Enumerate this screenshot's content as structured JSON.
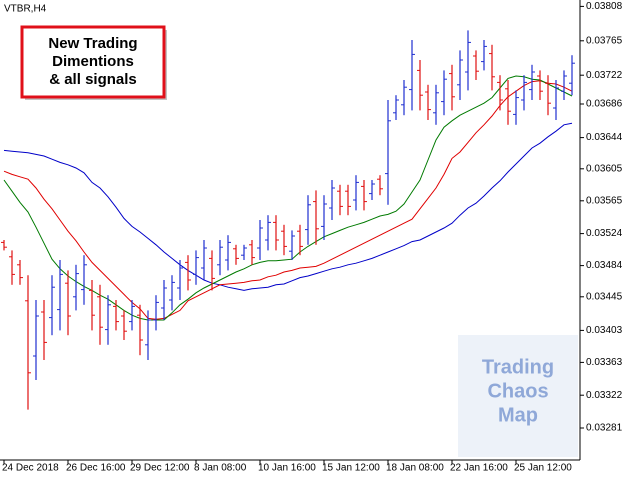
{
  "chart_data": {
    "type": "ohlc",
    "title": "VTBR,H4",
    "annotation": [
      "New Trading",
      "Dimentions",
      "& all signals"
    ],
    "watermark": [
      "Trading",
      "Chaos",
      "Map"
    ],
    "categories": [
      "24 Dec 2018",
      null,
      null,
      null,
      null,
      null,
      null,
      null,
      "26 Dec 16:00",
      null,
      null,
      null,
      null,
      null,
      null,
      null,
      "29 Dec 12:00",
      null,
      null,
      null,
      null,
      null,
      null,
      null,
      "8 Jan 08:00",
      null,
      null,
      null,
      null,
      null,
      null,
      null,
      "10 Jan 16:00",
      null,
      null,
      null,
      null,
      null,
      null,
      null,
      "15 Jan 12:00",
      null,
      null,
      null,
      null,
      null,
      null,
      null,
      "18 Jan 08:00",
      null,
      null,
      null,
      null,
      null,
      null,
      null,
      "22 Jan 16:00",
      null,
      null,
      null,
      null,
      null,
      null,
      null,
      "25 Jan 12:00",
      null,
      null,
      null,
      null,
      null,
      null,
      null
    ],
    "ylim": [
      0.03241,
      0.03816
    ],
    "yticks": [
      0.03808,
      0.03765,
      0.03722,
      0.03686,
      0.03644,
      0.03605,
      0.03565,
      0.03524,
      0.03484,
      0.03445,
      0.03403,
      0.03363,
      0.03322,
      0.03281
    ],
    "up_color": "#1f2fd0",
    "down_color": "#e01010",
    "open": [
      0.03513,
      0.03495,
      0.03485,
      0.0344,
      0.03371,
      0.03426,
      0.03419,
      0.03429,
      0.03462,
      0.03445,
      0.03454,
      0.03453,
      0.03445,
      0.03404,
      0.03433,
      0.03421,
      0.03414,
      0.03422,
      0.03385,
      0.03416,
      0.03431,
      0.03441,
      0.03456,
      0.03488,
      0.03473,
      0.03481,
      0.03493,
      0.03485,
      0.03491,
      0.03505,
      0.03497,
      0.0351,
      0.03506,
      0.03516,
      0.03538,
      0.03527,
      0.03502,
      0.03527,
      0.03529,
      0.03564,
      0.03533,
      0.03556,
      0.03577,
      0.03577,
      0.03566,
      0.03583,
      0.03574,
      0.03592,
      0.03599,
      0.03675,
      0.03685,
      0.03704,
      0.03728,
      0.03701,
      0.03675,
      0.03689,
      0.03724,
      0.0371,
      0.03726,
      0.03746,
      0.03739,
      0.03749,
      0.03713,
      0.03705,
      0.03673,
      0.03691,
      0.03704,
      0.03721,
      0.03712,
      0.03681,
      0.03702,
      0.03712
    ],
    "high": [
      0.03516,
      0.03503,
      0.03491,
      0.03472,
      0.03441,
      0.03441,
      0.03472,
      0.03491,
      0.03478,
      0.03485,
      0.03497,
      0.03466,
      0.0346,
      0.03447,
      0.03441,
      0.03428,
      0.03441,
      0.03435,
      0.03428,
      0.03447,
      0.03466,
      0.03472,
      0.03491,
      0.03497,
      0.03503,
      0.03516,
      0.03503,
      0.03516,
      0.03522,
      0.0351,
      0.0351,
      0.03516,
      0.03541,
      0.03547,
      0.03547,
      0.03535,
      0.03528,
      0.03535,
      0.03572,
      0.03578,
      0.03572,
      0.03591,
      0.03585,
      0.03585,
      0.03597,
      0.03591,
      0.03591,
      0.03597,
      0.03691,
      0.03697,
      0.03716,
      0.03766,
      0.03741,
      0.0371,
      0.0371,
      0.03728,
      0.03735,
      0.03753,
      0.03778,
      0.03753,
      0.03766,
      0.0376,
      0.03722,
      0.03716,
      0.03703,
      0.03722,
      0.03735,
      0.03728,
      0.03722,
      0.03716,
      0.03728,
      0.03747
    ],
    "low": [
      0.03503,
      0.0346,
      0.0346,
      0.03304,
      0.03341,
      0.03366,
      0.03397,
      0.03403,
      0.03397,
      0.03428,
      0.03435,
      0.03403,
      0.03385,
      0.03385,
      0.03403,
      0.03391,
      0.03403,
      0.03372,
      0.03366,
      0.03403,
      0.03416,
      0.03428,
      0.03441,
      0.03453,
      0.0346,
      0.03466,
      0.03453,
      0.03472,
      0.03478,
      0.03485,
      0.03491,
      0.03485,
      0.03491,
      0.03503,
      0.03503,
      0.03497,
      0.03491,
      0.03497,
      0.0351,
      0.0351,
      0.03516,
      0.03541,
      0.03547,
      0.03547,
      0.03553,
      0.03553,
      0.03566,
      0.03572,
      0.0356,
      0.03666,
      0.03672,
      0.03678,
      0.03678,
      0.03666,
      0.0366,
      0.03672,
      0.03678,
      0.03691,
      0.03703,
      0.03716,
      0.03728,
      0.03703,
      0.03678,
      0.0366,
      0.0366,
      0.03678,
      0.03691,
      0.03691,
      0.03672,
      0.03666,
      0.03691,
      0.03697
    ],
    "close": [
      0.03507,
      0.03473,
      0.03469,
      0.0335,
      0.03421,
      0.03388,
      0.03457,
      0.03473,
      0.03421,
      0.03474,
      0.03485,
      0.03422,
      0.03407,
      0.03435,
      0.03414,
      0.03402,
      0.03433,
      0.03391,
      0.03416,
      0.03438,
      0.03456,
      0.03463,
      0.03481,
      0.03466,
      0.03494,
      0.03506,
      0.03468,
      0.03507,
      0.03513,
      0.03493,
      0.03506,
      0.03494,
      0.03531,
      0.03538,
      0.03516,
      0.03508,
      0.03521,
      0.03508,
      0.0356,
      0.0353,
      0.03561,
      0.03581,
      0.03558,
      0.03558,
      0.03588,
      0.03564,
      0.03586,
      0.0358,
      0.03665,
      0.03691,
      0.03707,
      0.03748,
      0.03697,
      0.03679,
      0.037,
      0.03717,
      0.03695,
      0.03741,
      0.03763,
      0.03727,
      0.03758,
      0.0372,
      0.03691,
      0.03677,
      0.03694,
      0.03713,
      0.03726,
      0.03702,
      0.03687,
      0.03706,
      0.03721,
      0.03737
    ],
    "lines": [
      {
        "color": "#0000c8",
        "values": [
          0.03628,
          0.03627,
          0.03626,
          0.03625,
          0.03623,
          0.03621,
          0.03617,
          0.03613,
          0.0361,
          0.03606,
          0.036,
          0.03588,
          0.03581,
          0.0357,
          0.03557,
          0.03543,
          0.03533,
          0.03526,
          0.03518,
          0.0351,
          0.03501,
          0.03493,
          0.03485,
          0.03478,
          0.03472,
          0.03466,
          0.03462,
          0.0346,
          0.03457,
          0.03455,
          0.03453,
          0.03455,
          0.03456,
          0.03457,
          0.0346,
          0.03461,
          0.03465,
          0.03469,
          0.03471,
          0.03474,
          0.03477,
          0.0348,
          0.03482,
          0.03485,
          0.03487,
          0.0349,
          0.03493,
          0.03497,
          0.03501,
          0.03505,
          0.03509,
          0.03514,
          0.03516,
          0.03521,
          0.03526,
          0.03531,
          0.03537,
          0.03547,
          0.03556,
          0.03562,
          0.03571,
          0.03581,
          0.0359,
          0.03601,
          0.03611,
          0.03621,
          0.03631,
          0.03637,
          0.03645,
          0.03652,
          0.0366,
          0.03662
        ]
      },
      {
        "color": "#e00000",
        "values": [
          0.03602,
          0.03598,
          0.03595,
          0.03592,
          0.03581,
          0.03567,
          0.03555,
          0.03541,
          0.03527,
          0.03515,
          0.03501,
          0.03488,
          0.03478,
          0.03468,
          0.03458,
          0.03448,
          0.03438,
          0.0343,
          0.03418,
          0.03417,
          0.03418,
          0.03423,
          0.03428,
          0.0344,
          0.03445,
          0.0345,
          0.03455,
          0.0346,
          0.03461,
          0.03462,
          0.03463,
          0.03465,
          0.03466,
          0.0347,
          0.03472,
          0.03476,
          0.03478,
          0.03481,
          0.03482,
          0.03483,
          0.03487,
          0.03492,
          0.03497,
          0.03502,
          0.03507,
          0.03512,
          0.03517,
          0.03522,
          0.03527,
          0.03532,
          0.03537,
          0.03542,
          0.03555,
          0.03568,
          0.03581,
          0.03598,
          0.03618,
          0.03626,
          0.03638,
          0.0365,
          0.0366,
          0.03671,
          0.03684,
          0.03695,
          0.03702,
          0.03709,
          0.03714,
          0.03715,
          0.03712,
          0.03711,
          0.03707,
          0.03702
        ]
      },
      {
        "color": "#007a00",
        "values": [
          0.03591,
          0.03577,
          0.03563,
          0.03551,
          0.03532,
          0.03512,
          0.03492,
          0.0348,
          0.03471,
          0.03464,
          0.03458,
          0.03453,
          0.03447,
          0.03442,
          0.03435,
          0.03428,
          0.03422,
          0.03418,
          0.03416,
          0.03416,
          0.03416,
          0.03425,
          0.03435,
          0.03442,
          0.0345,
          0.03456,
          0.03461,
          0.03466,
          0.03471,
          0.03476,
          0.0348,
          0.03485,
          0.03488,
          0.0349,
          0.0349,
          0.03491,
          0.03492,
          0.03501,
          0.03508,
          0.03514,
          0.0352,
          0.03524,
          0.03528,
          0.03532,
          0.03535,
          0.03538,
          0.03542,
          0.03546,
          0.03548,
          0.03552,
          0.03561,
          0.03576,
          0.03591,
          0.03616,
          0.03641,
          0.03657,
          0.03665,
          0.03672,
          0.03677,
          0.03682,
          0.03687,
          0.03694,
          0.03706,
          0.03718,
          0.03721,
          0.0372,
          0.03717,
          0.03716,
          0.03711,
          0.03706,
          0.03701,
          0.03696
        ]
      }
    ]
  }
}
